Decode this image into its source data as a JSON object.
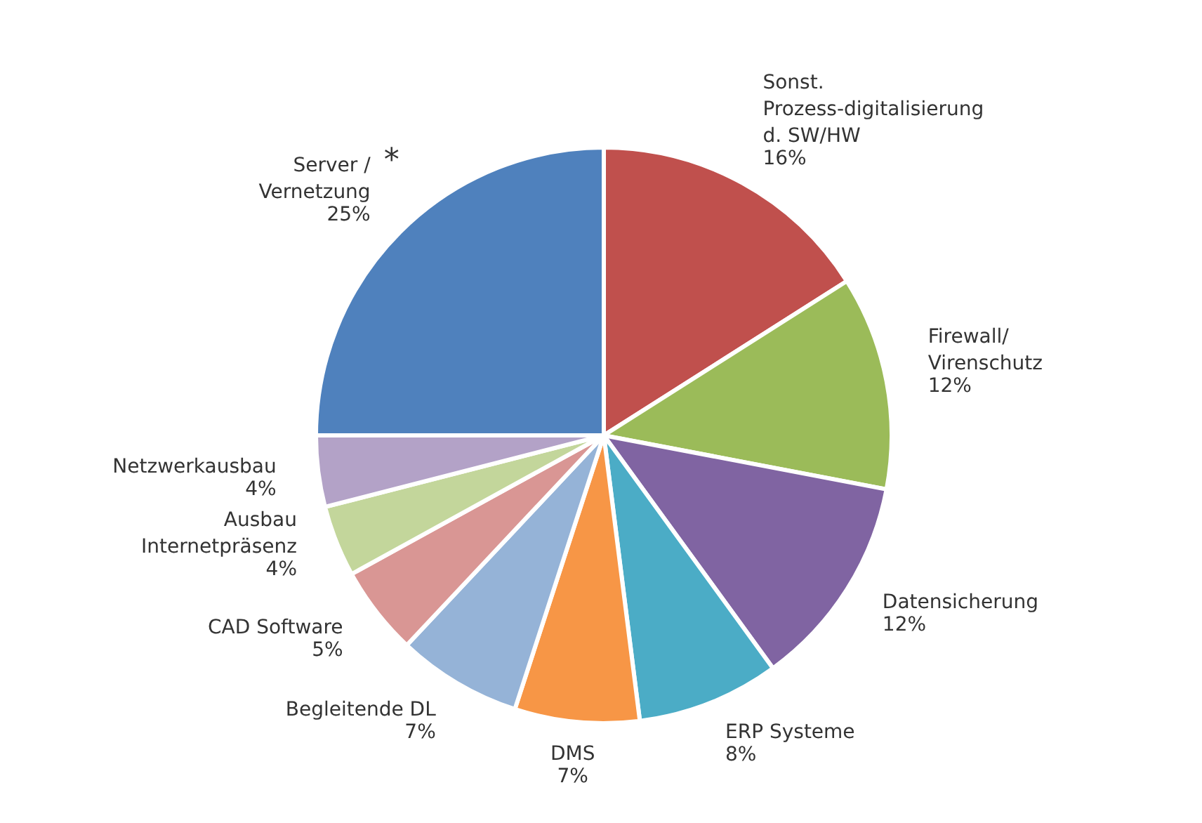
{
  "chart_data": {
    "type": "pie",
    "categories": [
      "Sonst. Prozess-digitalisierung d. SW/HW",
      "Firewall/ Virenschutz",
      "Datensicherung",
      "ERP Systeme",
      "DMS",
      "Begleitende DL",
      "CAD Software",
      "Ausbau Internetpräsenz",
      "Netzwerkausbau",
      "Server / Vernetzung"
    ],
    "values": [
      16,
      12,
      12,
      8,
      7,
      7,
      5,
      4,
      4,
      25
    ],
    "colors": [
      "#c0504d",
      "#9bbb59",
      "#8064a2",
      "#4bacc6",
      "#f79646",
      "#95b3d7",
      "#d99694",
      "#c3d69b",
      "#b3a2c7",
      "#4f81bd"
    ],
    "value_labels": [
      "16%",
      "12%",
      "12%",
      "8%",
      "7%",
      "7%",
      "5%",
      "4%",
      "4%",
      "25%"
    ],
    "annotations": [
      "*"
    ]
  }
}
